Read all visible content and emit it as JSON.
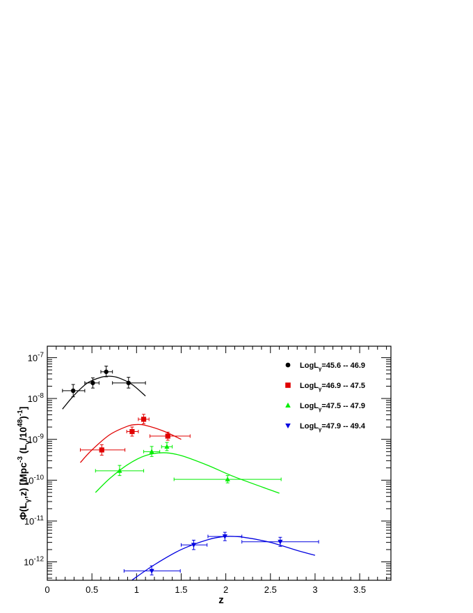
{
  "chart_data": {
    "type": "scatter",
    "xlabel": "z",
    "ylabel": "Φ(Lγ,z) [Mpc⁻³ (Lγ/10⁴⁸)⁻¹]",
    "xlim": [
      0,
      3.85
    ],
    "ylim_log10": [
      -12.45,
      -6.72
    ],
    "yscale": "log",
    "xticks": [
      "0",
      "0.5",
      "1",
      "1.5",
      "2",
      "2.5",
      "3",
      "3.5"
    ],
    "ytick_exponents": [
      "-12",
      "-11",
      "-10",
      "-9",
      "-8",
      "-7"
    ],
    "legend_position": "top-right",
    "series": [
      {
        "name": "LogLγ=45.6 -- 46.9",
        "color": "#000000",
        "marker": "circle",
        "points": [
          {
            "x": 0.29,
            "y": 1.55e-08,
            "xlo": 0.17,
            "xhi": 0.42,
            "ylo": 1.1e-08,
            "yhi": 2.2e-08
          },
          {
            "x": 0.51,
            "y": 2.4e-08,
            "xlo": 0.42,
            "xhi": 0.58,
            "ylo": 1.8e-08,
            "yhi": 3.2e-08
          },
          {
            "x": 0.66,
            "y": 4.5e-08,
            "xlo": 0.6,
            "xhi": 0.73,
            "ylo": 3.4e-08,
            "yhi": 6.2e-08
          },
          {
            "x": 0.91,
            "y": 2.4e-08,
            "xlo": 0.73,
            "xhi": 1.1,
            "ylo": 1.8e-08,
            "yhi": 3.3e-08
          }
        ],
        "curve": [
          [
            0.17,
            5.5e-09
          ],
          [
            0.3,
            1.2e-08
          ],
          [
            0.45,
            2.4e-08
          ],
          [
            0.6,
            3.3e-08
          ],
          [
            0.7,
            3.5e-08
          ],
          [
            0.8,
            3.2e-08
          ],
          [
            0.95,
            2.2e-08
          ],
          [
            1.1,
            1.15e-08
          ]
        ]
      },
      {
        "name": "LogLγ=46.9 -- 47.5",
        "color": "#e00000",
        "marker": "square",
        "points": [
          {
            "x": 0.61,
            "y": 5.5e-10,
            "xlo": 0.37,
            "xhi": 0.87,
            "ylo": 4.1e-10,
            "yhi": 7.4e-10
          },
          {
            "x": 0.95,
            "y": 1.55e-09,
            "xlo": 0.89,
            "xhi": 1.02,
            "ylo": 1.2e-09,
            "yhi": 2e-09
          },
          {
            "x": 1.08,
            "y": 3.1e-09,
            "xlo": 1.02,
            "xhi": 1.14,
            "ylo": 2.4e-09,
            "yhi": 4.1e-09
          },
          {
            "x": 1.35,
            "y": 1.2e-09,
            "xlo": 1.15,
            "xhi": 1.6,
            "ylo": 9.5e-10,
            "yhi": 1.5e-09
          }
        ],
        "curve": [
          [
            0.37,
            2.7e-10
          ],
          [
            0.5,
            5.5e-10
          ],
          [
            0.7,
            1.3e-09
          ],
          [
            0.9,
            2.1e-09
          ],
          [
            1.0,
            2.3e-09
          ],
          [
            1.1,
            2.2e-09
          ],
          [
            1.3,
            1.6e-09
          ],
          [
            1.5,
            1e-09
          ]
        ]
      },
      {
        "name": "LogLγ=47.5 -- 47.9",
        "color": "#00ee00",
        "marker": "triangle-up",
        "points": [
          {
            "x": 0.81,
            "y": 1.7e-10,
            "xlo": 0.54,
            "xhi": 1.08,
            "ylo": 1.3e-10,
            "yhi": 2.3e-10
          },
          {
            "x": 1.17,
            "y": 5e-10,
            "xlo": 1.08,
            "xhi": 1.26,
            "ylo": 3.8e-10,
            "yhi": 6.7e-10
          },
          {
            "x": 1.34,
            "y": 6.6e-10,
            "xlo": 1.28,
            "xhi": 1.4,
            "ylo": 5.3e-10,
            "yhi": 8.4e-10
          },
          {
            "x": 2.02,
            "y": 1.05e-10,
            "xlo": 1.42,
            "xhi": 2.62,
            "ylo": 8.6e-11,
            "yhi": 1.3e-10
          }
        ],
        "curve": [
          [
            0.54,
            5e-11
          ],
          [
            0.7,
            1.1e-10
          ],
          [
            0.9,
            2.4e-10
          ],
          [
            1.1,
            4e-10
          ],
          [
            1.3,
            4.7e-10
          ],
          [
            1.5,
            4e-10
          ],
          [
            1.8,
            2.3e-10
          ],
          [
            2.1,
            1.2e-10
          ],
          [
            2.6,
            4.8e-11
          ]
        ]
      },
      {
        "name": "LogLγ=47.9 -- 49.4",
        "color": "#0000e0",
        "marker": "triangle-down",
        "points": [
          {
            "x": 1.17,
            "y": 6e-13,
            "xlo": 0.86,
            "xhi": 1.49,
            "ylo": 4.8e-13,
            "yhi": 8e-13
          },
          {
            "x": 1.64,
            "y": 2.6e-12,
            "xlo": 1.5,
            "xhi": 1.79,
            "ylo": 2e-12,
            "yhi": 3.4e-12
          },
          {
            "x": 1.99,
            "y": 4.2e-12,
            "xlo": 1.8,
            "xhi": 2.18,
            "ylo": 3.3e-12,
            "yhi": 5.3e-12
          },
          {
            "x": 2.61,
            "y": 3.1e-12,
            "xlo": 2.18,
            "xhi": 3.04,
            "ylo": 2.4e-12,
            "yhi": 4e-12
          }
        ],
        "curve": [
          [
            0.95,
            3.6e-13
          ],
          [
            1.2,
            8.5e-13
          ],
          [
            1.5,
            2e-12
          ],
          [
            1.8,
            3.5e-12
          ],
          [
            2.0,
            4.2e-12
          ],
          [
            2.2,
            4e-12
          ],
          [
            2.5,
            3e-12
          ],
          [
            2.8,
            1.9e-12
          ],
          [
            3.0,
            1.45e-12
          ]
        ]
      }
    ]
  }
}
